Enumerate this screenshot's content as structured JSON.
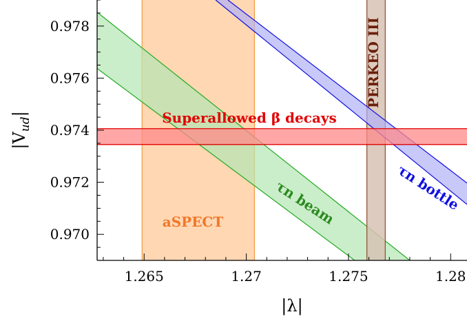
{
  "chart_data": {
    "type": "area",
    "xlabel": "|λ|",
    "ylabel": "|V_ud|",
    "xlim": [
      1.2627,
      1.2808
    ],
    "ylim": [
      0.969,
      0.979
    ],
    "x_ticks": [
      "1.265",
      "1.27",
      "1.275",
      "1.28"
    ],
    "x_tick_values": [
      1.265,
      1.27,
      1.275,
      1.28
    ],
    "y_ticks": [
      "0.970",
      "0.972",
      "0.974",
      "0.976",
      "0.978"
    ],
    "y_tick_values": [
      0.97,
      0.972,
      0.974,
      0.976,
      0.978
    ],
    "grid": false,
    "bands": [
      {
        "name": "aSPECT",
        "kind": "vertical",
        "x_range": [
          1.2649,
          1.2704
        ],
        "fill": "#ffd0a6",
        "stroke": "#f09a3e",
        "label": "aSPECT",
        "label_color": "#f07828"
      },
      {
        "name": "PERKEO III",
        "kind": "vertical",
        "x_range": [
          1.2759,
          1.2768
        ],
        "fill": "#d6c2b3",
        "stroke": "#8b4a2b",
        "label": "PERKEO III",
        "label_color": "#6b1f0a"
      },
      {
        "name": "Superallowed β decays",
        "kind": "horizontal",
        "y_range": [
          0.97345,
          0.97406
        ],
        "fill": "#ff8a8a",
        "stroke": "#e00000",
        "label": "Superallowed β decays",
        "label_color": "#e00000"
      },
      {
        "name": "τn beam",
        "kind": "diagonal",
        "upper": [
          [
            1.2627,
            0.97853
          ],
          [
            1.278,
            0.969
          ]
        ],
        "lower": [
          [
            1.2627,
            0.97637
          ],
          [
            1.2753,
            0.969
          ]
        ],
        "fill": "#b4e6b4",
        "stroke": "#22aa22",
        "label_symbol": "τn",
        "label": "beam",
        "label_color": "#2a8a1e"
      },
      {
        "name": "τn bottle",
        "kind": "diagonal",
        "upper": [
          [
            1.2691,
            0.979
          ],
          [
            1.2808,
            0.97197
          ]
        ],
        "lower": [
          [
            1.2685,
            0.979
          ],
          [
            1.2808,
            0.97115
          ]
        ],
        "fill": "#b0b0f6",
        "stroke": "#1010e0",
        "label_symbol": "τn",
        "label": "bottle",
        "label_color": "#1010e0"
      }
    ]
  }
}
